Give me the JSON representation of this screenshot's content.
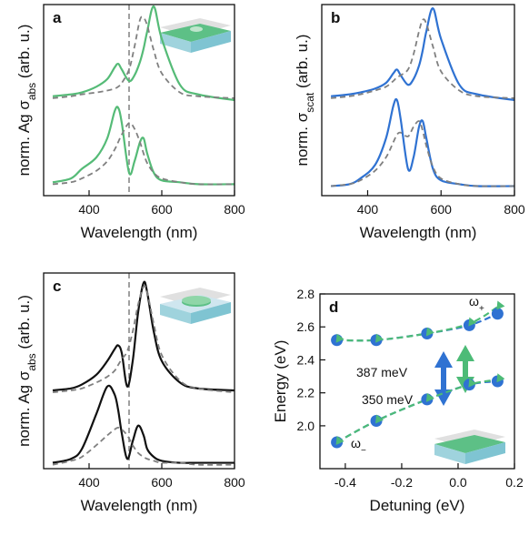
{
  "chart_data": [
    {
      "type": "line",
      "letter": "a",
      "xlabel": "Wavelength (nm)",
      "ylabel": [
        "norm. Ag σ",
        "abs",
        " (arb. u.)"
      ],
      "xlim": [
        275,
        800
      ],
      "ylim": [
        0,
        1
      ],
      "xticks": [
        400,
        600,
        800
      ],
      "vline": 510,
      "x": [
        300,
        350,
        380,
        420,
        450,
        470,
        480,
        490,
        510,
        525,
        540,
        550,
        560,
        578,
        600,
        650,
        700,
        800
      ],
      "series": [
        {
          "color": "#55bb77",
          "dash": false,
          "values": [
            0.52,
            0.53,
            0.54,
            0.57,
            0.61,
            0.67,
            0.69,
            0.66,
            0.6,
            0.63,
            0.7,
            0.77,
            0.86,
            0.99,
            0.82,
            0.58,
            0.53,
            0.5
          ]
        },
        {
          "color": "#808080",
          "dash": true,
          "values": [
            0.51,
            0.52,
            0.53,
            0.54,
            0.55,
            0.56,
            0.57,
            0.59,
            0.66,
            0.78,
            0.92,
            0.93,
            0.89,
            0.76,
            0.64,
            0.54,
            0.52,
            0.51
          ]
        },
        {
          "color": "#55bb77",
          "dash": false,
          "values": [
            0.07,
            0.09,
            0.14,
            0.2,
            0.3,
            0.44,
            0.46,
            0.38,
            0.12,
            0.18,
            0.28,
            0.3,
            0.22,
            0.12,
            0.08,
            0.07,
            0.06,
            0.06
          ]
        },
        {
          "color": "#808080",
          "dash": true,
          "values": [
            0.06,
            0.07,
            0.09,
            0.13,
            0.18,
            0.24,
            0.28,
            0.32,
            0.38,
            0.35,
            0.28,
            0.22,
            0.17,
            0.12,
            0.09,
            0.07,
            0.06,
            0.06
          ]
        }
      ]
    },
    {
      "type": "line",
      "letter": "b",
      "xlabel": "Wavelength (nm)",
      "ylabel": [
        "norm. σ",
        "scat",
        " (arb. u.)"
      ],
      "xlim": [
        275,
        800
      ],
      "ylim": [
        0,
        1
      ],
      "xticks": [
        400,
        600,
        800
      ],
      "x": [
        300,
        350,
        380,
        420,
        450,
        470,
        480,
        490,
        510,
        525,
        540,
        550,
        560,
        578,
        600,
        650,
        700,
        800
      ],
      "series": [
        {
          "color": "#2f72d2",
          "dash": false,
          "values": [
            0.52,
            0.53,
            0.54,
            0.56,
            0.59,
            0.64,
            0.66,
            0.63,
            0.58,
            0.61,
            0.68,
            0.76,
            0.86,
            0.98,
            0.82,
            0.58,
            0.53,
            0.5
          ]
        },
        {
          "color": "#808080",
          "dash": true,
          "values": [
            0.51,
            0.52,
            0.53,
            0.55,
            0.57,
            0.6,
            0.62,
            0.63,
            0.66,
            0.74,
            0.86,
            0.92,
            0.9,
            0.78,
            0.65,
            0.55,
            0.52,
            0.51
          ]
        },
        {
          "color": "#2f72d2",
          "dash": false,
          "values": [
            0.05,
            0.06,
            0.09,
            0.16,
            0.3,
            0.47,
            0.5,
            0.4,
            0.14,
            0.2,
            0.36,
            0.39,
            0.3,
            0.14,
            0.08,
            0.06,
            0.05,
            0.05
          ]
        },
        {
          "color": "#808080",
          "dash": true,
          "values": [
            0.05,
            0.06,
            0.08,
            0.13,
            0.2,
            0.28,
            0.32,
            0.33,
            0.31,
            0.36,
            0.39,
            0.34,
            0.26,
            0.15,
            0.09,
            0.06,
            0.05,
            0.05
          ]
        }
      ]
    },
    {
      "type": "line",
      "letter": "c",
      "xlabel": "Wavelength (nm)",
      "ylabel": [
        "norm. Ag σ",
        "abs",
        " (arb. u.)"
      ],
      "xlim": [
        275,
        800
      ],
      "ylim": [
        0,
        1
      ],
      "xticks": [
        400,
        600,
        800
      ],
      "vline": 510,
      "x": [
        300,
        350,
        380,
        420,
        450,
        470,
        480,
        490,
        505,
        520,
        535,
        550,
        560,
        578,
        600,
        650,
        700,
        800
      ],
      "series": [
        {
          "color": "#111111",
          "dash": false,
          "values": [
            0.4,
            0.41,
            0.43,
            0.48,
            0.55,
            0.61,
            0.63,
            0.59,
            0.42,
            0.55,
            0.8,
            0.95,
            0.9,
            0.7,
            0.55,
            0.44,
            0.41,
            0.4
          ]
        },
        {
          "color": "#808080",
          "dash": true,
          "values": [
            0.39,
            0.4,
            0.41,
            0.44,
            0.47,
            0.5,
            0.53,
            0.56,
            0.6,
            0.7,
            0.84,
            0.93,
            0.9,
            0.74,
            0.58,
            0.45,
            0.41,
            0.39
          ]
        },
        {
          "color": "#111111",
          "dash": false,
          "values": [
            0.03,
            0.05,
            0.1,
            0.28,
            0.42,
            0.38,
            0.3,
            0.18,
            0.05,
            0.14,
            0.22,
            0.17,
            0.1,
            0.06,
            0.04,
            0.03,
            0.03,
            0.03
          ]
        },
        {
          "color": "#808080",
          "dash": true,
          "values": [
            0.02,
            0.04,
            0.06,
            0.12,
            0.17,
            0.2,
            0.21,
            0.2,
            0.17,
            0.12,
            0.08,
            0.06,
            0.05,
            0.04,
            0.03,
            0.03,
            0.02,
            0.02
          ]
        }
      ]
    },
    {
      "type": "scatter",
      "letter": "d",
      "xlabel": "Detuning (eV)",
      "ylabel": [
        "Energy (eV)"
      ],
      "xlim": [
        -0.49,
        0.2
      ],
      "ylim": [
        1.74,
        2.8
      ],
      "xticks": [
        -0.4,
        -0.2,
        {
          "value": 0,
          "label": "0.0"
        },
        0.2
      ],
      "yticks": [
        {
          "value": 2,
          "label": "2.0"
        },
        2.2,
        2.4,
        2.6,
        2.8
      ],
      "x": [
        -0.43,
        -0.29,
        -0.11,
        0.04,
        0.14
      ],
      "series": [
        {
          "color": "#2f72d2",
          "marker": "circle",
          "values": [
            2.52,
            2.52,
            2.56,
            2.61,
            2.68
          ]
        },
        {
          "color": "#2f72d2",
          "marker": "circle",
          "values": [
            1.9,
            2.03,
            2.16,
            2.25,
            2.27
          ]
        },
        {
          "color": "#4dbb77",
          "marker": "triangle",
          "values": [
            2.52,
            2.52,
            2.56,
            2.62,
            2.72
          ]
        },
        {
          "color": "#4dbb77",
          "marker": "triangle",
          "values": [
            1.9,
            2.03,
            2.16,
            2.25,
            2.28
          ]
        }
      ],
      "annotations": [
        {
          "text": "387 meV",
          "color": "#2f72d2"
        },
        {
          "text": "350 meV",
          "color": "#4dbb77"
        }
      ],
      "branch_labels": [
        [
          "ω",
          "+"
        ],
        [
          "ω",
          "−"
        ]
      ]
    }
  ]
}
